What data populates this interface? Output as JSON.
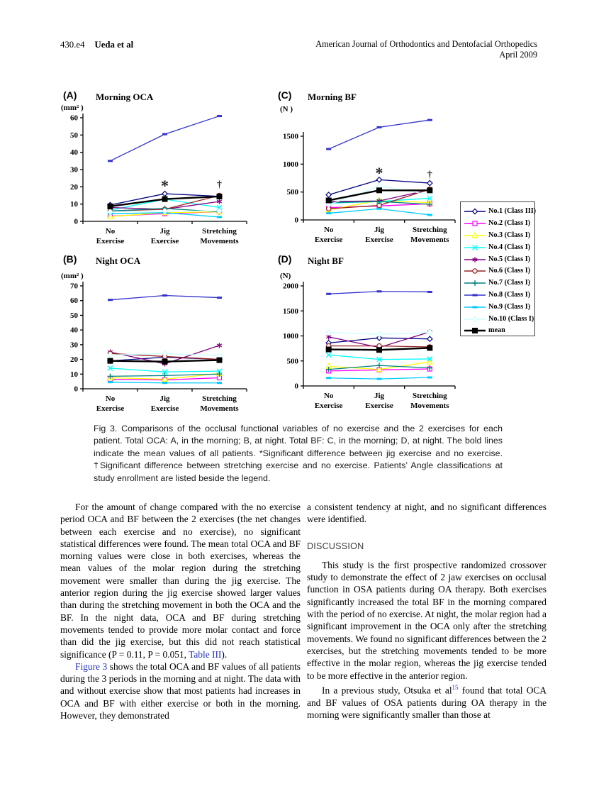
{
  "header": {
    "page_number": "430.e4",
    "running_author": "Ueda et al",
    "journal_line1": "American Journal of Orthodontics and Dentofacial Orthopedics",
    "journal_line2": "April 2009"
  },
  "figure": {
    "caption": "Fig 3.  Comparisons of the occlusal functional variables of no exercise and the 2 exercises for each patient. Total OCA: A, in the morning; B, at night. Total BF: C, in the morning; D, at night. The bold lines indicate the mean values of all patients. *Significant difference between jig exercise and no exercise. †Significant difference between stretching exercise and no exercise. Patients’ Angle classifications at study enrollment are listed beside the legend."
  },
  "legend": {
    "items": [
      {
        "label": "No.1 (Class III)",
        "color": "#000080",
        "marker": "diamond"
      },
      {
        "label": "No.2 (Class I)",
        "color": "#FF00FF",
        "marker": "square"
      },
      {
        "label": "No.3 (Class I)",
        "color": "#FFFF00",
        "marker": "triangle"
      },
      {
        "label": "No.4 (Class I)",
        "color": "#00FFFF",
        "marker": "x"
      },
      {
        "label": "No.5 (Class I)",
        "color": "#800080",
        "marker": "star"
      },
      {
        "label": "No.6 (Class I)",
        "color": "#992222",
        "marker": "circle"
      },
      {
        "label": "No.7 (Class I)",
        "color": "#008080",
        "marker": "plus"
      },
      {
        "label": "No.8 (Class I)",
        "color": "#3333CC",
        "marker": "dash"
      },
      {
        "label": "No.9 (Class I)",
        "color": "#00CCFF",
        "marker": "dash"
      },
      {
        "label": "No.10 (Class I)",
        "color": "#CCFFFF",
        "marker": "diamond"
      },
      {
        "label": "mean",
        "color": "#000000",
        "marker": "square-filled"
      }
    ]
  },
  "chart_data": [
    {
      "id": "A",
      "type": "line",
      "panel_label": "(A)",
      "title": "Morning OCA",
      "unit": "(mm² )",
      "categories": [
        "No\nExercise",
        "Jig\nExercise",
        "Stretching\nMovements"
      ],
      "ylim": [
        0,
        62
      ],
      "yticks": [
        0,
        10,
        20,
        30,
        40,
        50,
        60
      ],
      "grid": false,
      "series": [
        {
          "name": "No.1 (Class III)",
          "values": [
            9.5,
            16,
            14.5
          ]
        },
        {
          "name": "No.2 (Class I)",
          "values": [
            3,
            4.5,
            5.5
          ]
        },
        {
          "name": "No.3 (Class I)",
          "values": [
            2.8,
            5,
            5.5
          ]
        },
        {
          "name": "No.4 (Class I)",
          "values": [
            6.5,
            12.8,
            8
          ]
        },
        {
          "name": "No.5 (Class I)",
          "values": [
            8,
            7,
            11.5
          ]
        },
        {
          "name": "No.6 (Class I)",
          "values": [
            6,
            7,
            15
          ]
        },
        {
          "name": "No.7 (Class I)",
          "values": [
            6,
            7.5,
            5.5
          ]
        },
        {
          "name": "No.8 (Class I)",
          "values": [
            35,
            50.5,
            61
          ]
        },
        {
          "name": "No.9 (Class I)",
          "values": [
            4.5,
            5,
            2.5
          ]
        },
        {
          "name": "No.10 (Class I)",
          "values": [
            5.5,
            6,
            6
          ]
        },
        {
          "name": "mean",
          "values": [
            8.7,
            12.9,
            14.4
          ]
        }
      ],
      "annotations": [
        {
          "symbol": "*",
          "category_index": 1,
          "y": 21
        },
        {
          "symbol": "†",
          "category_index": 2,
          "y": 21
        }
      ]
    },
    {
      "id": "C",
      "type": "line",
      "panel_label": "(C)",
      "title": "Morning BF",
      "unit": "(N )",
      "categories": [
        "No\nExercise",
        "Jig\nExercise",
        "Stretching\nMovements"
      ],
      "ylim": [
        0,
        1800
      ],
      "yticks": [
        0,
        500,
        1000,
        1500
      ],
      "grid": false,
      "series": [
        {
          "name": "No.1 (Class III)",
          "values": [
            450,
            720,
            660
          ]
        },
        {
          "name": "No.2 (Class I)",
          "values": [
            220,
            250,
            290
          ]
        },
        {
          "name": "No.3 (Class I)",
          "values": [
            180,
            350,
            310
          ]
        },
        {
          "name": "No.4 (Class I)",
          "values": [
            300,
            330,
            390
          ]
        },
        {
          "name": "No.5 (Class I)",
          "values": [
            330,
            340,
            540
          ]
        },
        {
          "name": "No.6 (Class I)",
          "values": [
            200,
            260,
            550
          ]
        },
        {
          "name": "No.7 (Class I)",
          "values": [
            310,
            330,
            280
          ]
        },
        {
          "name": "No.8 (Class I)",
          "values": [
            1270,
            1660,
            1790
          ]
        },
        {
          "name": "No.9 (Class I)",
          "values": [
            120,
            200,
            90
          ]
        },
        {
          "name": "No.10 (Class I)",
          "values": [
            270,
            610,
            450
          ]
        },
        {
          "name": "mean",
          "values": [
            350,
            530,
            530
          ]
        }
      ],
      "annotations": [
        {
          "symbol": "*",
          "category_index": 1,
          "y": 850
        },
        {
          "symbol": "†",
          "category_index": 2,
          "y": 800
        }
      ]
    },
    {
      "id": "B",
      "type": "line",
      "panel_label": "(B)",
      "title": "Night OCA",
      "unit": "(mm² )",
      "categories": [
        "No\nExercise",
        "Jig\nExercise",
        "Stretching\nMovements"
      ],
      "ylim": [
        0,
        70
      ],
      "yticks": [
        0,
        10,
        20,
        30,
        40,
        50,
        60,
        70
      ],
      "grid": false,
      "series": [
        {
          "name": "No.1 (Class III)",
          "values": [
            19,
            21.5,
            20
          ]
        },
        {
          "name": "No.2 (Class I)",
          "values": [
            6.5,
            6,
            7.5
          ]
        },
        {
          "name": "No.3 (Class I)",
          "values": [
            7.5,
            6.5,
            10.5
          ]
        },
        {
          "name": "No.4 (Class I)",
          "values": [
            14,
            11.5,
            12
          ]
        },
        {
          "name": "No.5 (Class I)",
          "values": [
            25,
            17,
            29.5
          ]
        },
        {
          "name": "No.6 (Class I)",
          "values": [
            24,
            22,
            20
          ]
        },
        {
          "name": "No.7 (Class I)",
          "values": [
            8.5,
            9,
            10
          ]
        },
        {
          "name": "No.8 (Class I)",
          "values": [
            60.5,
            63.5,
            62
          ]
        },
        {
          "name": "No.9 (Class I)",
          "values": [
            4.5,
            4,
            4
          ]
        },
        {
          "name": "No.10 (Class I)",
          "values": [
            23,
            24,
            22.5
          ]
        },
        {
          "name": "mean",
          "values": [
            19,
            18.5,
            19.5
          ]
        }
      ],
      "annotations": []
    },
    {
      "id": "D",
      "type": "line",
      "panel_label": "(D)",
      "title": "Night BF",
      "unit": "(N)",
      "categories": [
        "No\nExercise",
        "Jig\nExercise",
        "Stretching\nMovements"
      ],
      "ylim": [
        0,
        2000
      ],
      "yticks": [
        0,
        500,
        1000,
        1500,
        2000
      ],
      "grid": false,
      "series": [
        {
          "name": "No.1 (Class III)",
          "values": [
            860,
            960,
            940
          ]
        },
        {
          "name": "No.2 (Class I)",
          "values": [
            300,
            320,
            340
          ]
        },
        {
          "name": "No.3 (Class I)",
          "values": [
            390,
            330,
            480
          ]
        },
        {
          "name": "No.4 (Class I)",
          "values": [
            620,
            530,
            540
          ]
        },
        {
          "name": "No.5 (Class I)",
          "values": [
            980,
            770,
            1080
          ]
        },
        {
          "name": "No.6 (Class I)",
          "values": [
            800,
            800,
            780
          ]
        },
        {
          "name": "No.7 (Class I)",
          "values": [
            330,
            410,
            360
          ]
        },
        {
          "name": "No.8 (Class I)",
          "values": [
            1840,
            1890,
            1880
          ]
        },
        {
          "name": "No.9 (Class I)",
          "values": [
            160,
            140,
            170
          ]
        },
        {
          "name": "No.10 (Class I)",
          "values": [
            1070,
            1030,
            1070
          ]
        },
        {
          "name": "mean",
          "values": [
            730,
            720,
            760
          ]
        }
      ],
      "annotations": []
    }
  ],
  "body": {
    "left_column": {
      "p1_before": "For the amount of change compared with the no exercise period OCA and BF between the 2 exercises (the net changes between each exercise and no exercise), no significant statistical differences were found. The mean total OCA and BF morning values were close in both exercises, whereas the mean values of the molar region during the stretching movement were smaller than during the jig exercise. The anterior region during the jig exercise showed larger values than during the stretching movement in both the OCA and the BF. In the night data, OCA and BF during stretching movements tended to provide more molar contact and force than did the jig exercise, but this did not reach statistical significance (P = 0.11, P = 0.051, ",
      "p1_link": "Table III",
      "p1_after": ").",
      "p2_link": "Figure 3",
      "p2_after": " shows the total OCA and BF values of all patients during the 3 periods in the morning and at night. The data with and without exercise show that most patients had increases in OCA and BF with either exercise or both in the morning. However, they demonstrated"
    },
    "right_column": {
      "p3": "a consistent tendency at night, and no significant differences were identified.",
      "heading": "DISCUSSION",
      "p4": "This study is the first prospective randomized crossover study to demonstrate the effect of 2 jaw exercises on occlusal function in OSA patients during OA therapy. Both exercises significantly increased the total BF in the morning compared with the period of no exercise. At night, the molar region had a significant improvement in the OCA only after the stretching movements. We found no significant differences between the 2 exercises, but the stretching movements tended to be more effective in the molar region, whereas the jig exercise tended to be more effective in the anterior region.",
      "p5_before": "In a previous study, Otsuka et al",
      "p5_ref": "15",
      "p5_after": " found that total OCA and BF values of OSA patients during OA therapy in the morning were significantly smaller than those at"
    }
  }
}
